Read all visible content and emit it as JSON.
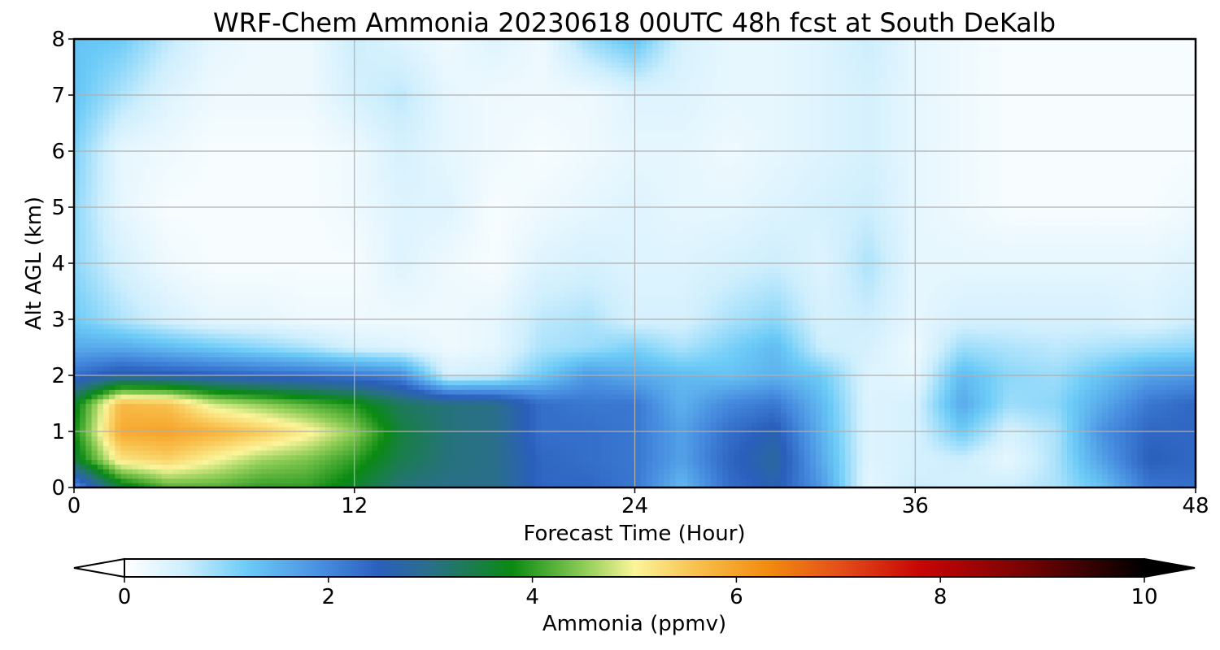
{
  "chart_data": {
    "type": "heatmap",
    "title": "WRF-Chem Ammonia  20230618 00UTC 48h fcst at South DeKalb",
    "xlabel": "Forecast Time (Hour)",
    "ylabel": "Alt AGL (km)",
    "xlim": [
      0,
      48
    ],
    "ylim": [
      0,
      8
    ],
    "x_ticks": [
      0,
      12,
      24,
      36,
      48
    ],
    "y_ticks": [
      0,
      1,
      2,
      3,
      4,
      5,
      6,
      7,
      8
    ],
    "grid": true,
    "colorbar": {
      "label": "Ammonia  (ppmv)",
      "ticks": [
        0,
        2,
        4,
        6,
        8,
        10
      ],
      "range": [
        0,
        10
      ],
      "extend": "both",
      "colors": [
        {
          "value": 0,
          "color": "#ffffff"
        },
        {
          "value": 0.6,
          "color": "#cdeefd"
        },
        {
          "value": 1.2,
          "color": "#6ccbf7"
        },
        {
          "value": 2.0,
          "color": "#4488dd"
        },
        {
          "value": 2.5,
          "color": "#2a5fbc"
        },
        {
          "value": 3.0,
          "color": "#2a6f8a"
        },
        {
          "value": 3.8,
          "color": "#0a8a12"
        },
        {
          "value": 4.5,
          "color": "#8ccc55"
        },
        {
          "value": 5.0,
          "color": "#fbf59a"
        },
        {
          "value": 5.6,
          "color": "#f8c14e"
        },
        {
          "value": 6.3,
          "color": "#f28c0e"
        },
        {
          "value": 7.0,
          "color": "#e4501a"
        },
        {
          "value": 7.8,
          "color": "#c80505"
        },
        {
          "value": 8.8,
          "color": "#7a0303"
        },
        {
          "value": 10,
          "color": "#000000"
        }
      ]
    },
    "times": [
      0,
      2,
      4,
      6,
      8,
      10,
      12,
      14,
      16,
      18,
      20,
      22,
      24,
      26,
      28,
      30,
      32,
      34,
      36,
      38,
      40,
      42,
      44,
      46,
      48
    ],
    "altitudes": [
      0,
      0.5,
      1,
      1.5,
      2,
      2.5,
      3,
      4,
      5,
      6,
      7,
      8
    ],
    "values": [
      [
        1.8,
        3.5,
        4.2,
        4.2,
        4.0,
        4.0,
        3.6,
        3.1,
        3.0,
        3.0,
        2.4,
        2.4,
        2.2,
        1.4,
        2.3,
        2.6,
        1.8,
        0.3,
        0.6,
        0.5,
        0.6,
        0.8,
        1.3,
        2.2,
        2.3
      ],
      [
        3.5,
        5.2,
        5.4,
        5.0,
        4.6,
        4.4,
        4.0,
        3.4,
        3.1,
        3.0,
        2.4,
        2.3,
        2.2,
        1.7,
        2.4,
        2.8,
        1.6,
        0.4,
        0.5,
        0.6,
        0.3,
        0.8,
        1.7,
        2.5,
        2.4
      ],
      [
        3.8,
        5.9,
        6.0,
        5.8,
        5.5,
        5.1,
        4.5,
        3.5,
        3.1,
        3.0,
        2.3,
        2.3,
        2.2,
        1.7,
        2.3,
        2.6,
        1.5,
        0.4,
        0.5,
        1.2,
        0.5,
        0.8,
        1.9,
        2.4,
        2.4
      ],
      [
        3.6,
        5.7,
        5.6,
        4.8,
        4.5,
        4.2,
        3.9,
        3.3,
        3.1,
        3.0,
        2.3,
        2.2,
        2.2,
        1.5,
        2.0,
        2.2,
        1.4,
        0.4,
        0.5,
        1.6,
        0.9,
        1.0,
        1.6,
        2.2,
        2.4
      ],
      [
        2.3,
        2.7,
        2.6,
        2.5,
        2.4,
        2.3,
        2.2,
        2.0,
        0.5,
        0.6,
        1.2,
        1.8,
        1.6,
        1.4,
        1.3,
        1.5,
        1.2,
        0.4,
        0.3,
        1.4,
        1.0,
        0.9,
        1.3,
        1.7,
        1.8
      ],
      [
        1.6,
        1.6,
        1.4,
        1.2,
        1.0,
        0.8,
        0.5,
        0.4,
        0.2,
        0.3,
        0.8,
        0.9,
        1.1,
        0.8,
        1.1,
        1.4,
        0.6,
        0.5,
        0.2,
        0.9,
        0.8,
        0.7,
        0.8,
        0.9,
        1.0
      ],
      [
        1.2,
        0.8,
        0.5,
        0.3,
        0.3,
        0.2,
        0.2,
        0.2,
        0.2,
        0.3,
        0.7,
        0.8,
        0.5,
        0.5,
        0.8,
        1.0,
        0.5,
        0.6,
        0.3,
        0.5,
        0.5,
        0.5,
        0.5,
        0.4,
        0.6
      ],
      [
        1.0,
        0.5,
        0.2,
        0.1,
        0.1,
        0.1,
        0.1,
        0.4,
        0.2,
        0.1,
        0.4,
        0.5,
        0.4,
        0.4,
        0.5,
        0.6,
        0.4,
        0.8,
        0.3,
        0.3,
        0.3,
        0.3,
        0.3,
        0.3,
        0.4
      ],
      [
        1.0,
        0.3,
        0.1,
        0.1,
        0.1,
        0.1,
        0.2,
        0.4,
        0.4,
        0.1,
        0.2,
        0.3,
        0.4,
        0.3,
        0.3,
        0.4,
        0.5,
        0.6,
        0.3,
        0.2,
        0.1,
        0.1,
        0.1,
        0.1,
        0.2
      ],
      [
        1.1,
        0.3,
        0.2,
        0.1,
        0.1,
        0.1,
        0.2,
        0.5,
        0.3,
        0.2,
        0.1,
        0.2,
        0.3,
        0.3,
        0.2,
        0.3,
        0.4,
        0.5,
        0.3,
        0.2,
        0.1,
        0.1,
        0.1,
        0.1,
        0.1
      ],
      [
        1.3,
        0.8,
        0.4,
        0.2,
        0.2,
        0.2,
        0.5,
        0.7,
        0.3,
        0.2,
        0.2,
        0.2,
        0.4,
        0.4,
        0.3,
        0.3,
        0.4,
        0.5,
        0.3,
        0.2,
        0.1,
        0.1,
        0.1,
        0.1,
        0.1
      ],
      [
        1.3,
        1.2,
        0.7,
        0.3,
        0.2,
        0.2,
        0.6,
        0.4,
        0.2,
        0.4,
        0.2,
        0.9,
        1.3,
        0.5,
        0.3,
        0.3,
        0.4,
        0.6,
        0.3,
        0.2,
        0.1,
        0.1,
        0.1,
        0.1,
        0.1
      ]
    ]
  }
}
